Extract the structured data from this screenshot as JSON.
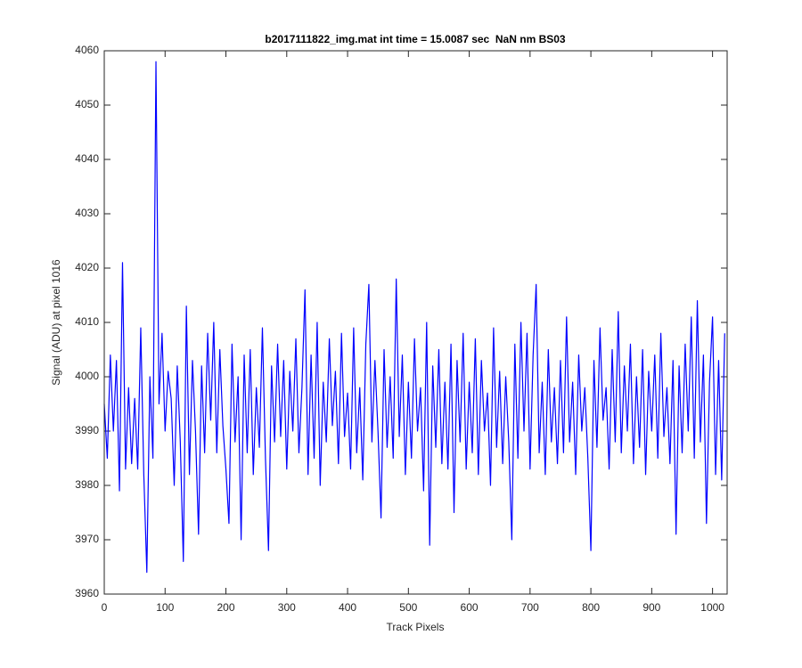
{
  "chart_data": {
    "type": "line",
    "title": "b2017111822_img.mat int time = 15.0087 sec  NaN nm BS03",
    "x_label": "Track Pixels",
    "y_label": "Signal (ADU) at pixel 1016",
    "color": "#0000ff",
    "xlim": [
      0,
      1024
    ],
    "ylim": [
      3960,
      4060
    ],
    "xticks": [
      0,
      100,
      200,
      300,
      400,
      500,
      600,
      700,
      800,
      900,
      1000
    ],
    "yticks": [
      3960,
      3970,
      3980,
      3990,
      4000,
      4010,
      4020,
      4030,
      4040,
      4050,
      4060
    ],
    "x": [
      0,
      5,
      10,
      15,
      20,
      25,
      30,
      35,
      40,
      45,
      50,
      55,
      60,
      65,
      70,
      75,
      80,
      85,
      90,
      95,
      100,
      105,
      110,
      115,
      120,
      125,
      130,
      135,
      140,
      145,
      150,
      155,
      160,
      165,
      170,
      175,
      180,
      185,
      190,
      195,
      200,
      205,
      210,
      215,
      220,
      225,
      230,
      235,
      240,
      245,
      250,
      255,
      260,
      265,
      270,
      275,
      280,
      285,
      290,
      295,
      300,
      305,
      310,
      315,
      320,
      325,
      330,
      335,
      340,
      345,
      350,
      355,
      360,
      365,
      370,
      375,
      380,
      385,
      390,
      395,
      400,
      405,
      410,
      415,
      420,
      425,
      430,
      435,
      440,
      445,
      450,
      455,
      460,
      465,
      470,
      475,
      480,
      485,
      490,
      495,
      500,
      505,
      510,
      515,
      520,
      525,
      530,
      535,
      540,
      545,
      550,
      555,
      560,
      565,
      570,
      575,
      580,
      585,
      590,
      595,
      600,
      605,
      610,
      615,
      620,
      625,
      630,
      635,
      640,
      645,
      650,
      655,
      660,
      665,
      670,
      675,
      680,
      685,
      690,
      695,
      700,
      705,
      710,
      715,
      720,
      725,
      730,
      735,
      740,
      745,
      750,
      755,
      760,
      765,
      770,
      775,
      780,
      785,
      790,
      795,
      800,
      805,
      810,
      815,
      820,
      825,
      830,
      835,
      840,
      845,
      850,
      855,
      860,
      865,
      870,
      875,
      880,
      885,
      890,
      895,
      900,
      905,
      910,
      915,
      920,
      925,
      930,
      935,
      940,
      945,
      950,
      955,
      960,
      965,
      970,
      975,
      980,
      985,
      990,
      995,
      1000,
      1005,
      1010,
      1015,
      1020
    ],
    "values": [
      3995,
      3985,
      4004,
      3990,
      4003,
      3979,
      4021,
      3983,
      3998,
      3984,
      3996,
      3983,
      4009,
      3982,
      3964,
      4000,
      3985,
      4058,
      3995,
      4008,
      3990,
      4001,
      3996,
      3980,
      4002,
      3988,
      3966,
      4013,
      3982,
      4003,
      3990,
      3971,
      4002,
      3986,
      4008,
      3992,
      4010,
      3986,
      4005,
      3991,
      3983,
      3973,
      4006,
      3988,
      4000,
      3970,
      4004,
      3986,
      4005,
      3982,
      3998,
      3987,
      4009,
      3985,
      3968,
      4002,
      3988,
      4006,
      3989,
      4003,
      3983,
      4001,
      3990,
      4007,
      3986,
      3998,
      4016,
      3982,
      4004,
      3985,
      4010,
      3980,
      3999,
      3988,
      4007,
      3991,
      4001,
      3984,
      4008,
      3989,
      3997,
      3983,
      4009,
      3986,
      3998,
      3981,
      4006,
      4017,
      3988,
      4003,
      3990,
      3974,
      4005,
      3987,
      4000,
      3985,
      4018,
      3989,
      4004,
      3982,
      3999,
      3985,
      4007,
      3990,
      3998,
      3979,
      4010,
      3969,
      4002,
      3987,
      4005,
      3984,
      3999,
      3983,
      4006,
      3975,
      4003,
      3988,
      4008,
      3983,
      3999,
      3986,
      4007,
      3982,
      4003,
      3990,
      3997,
      3980,
      4009,
      3987,
      4001,
      3984,
      4000,
      3988,
      3970,
      4006,
      3985,
      4010,
      3990,
      4008,
      3983,
      4004,
      4017,
      3986,
      3999,
      3982,
      4005,
      3988,
      3998,
      3984,
      4003,
      3986,
      4011,
      3988,
      3999,
      3982,
      4004,
      3990,
      3998,
      3985,
      3968,
      4003,
      3987,
      4009,
      3992,
      3998,
      3983,
      4005,
      3988,
      4012,
      3986,
      4002,
      3990,
      4006,
      3984,
      4000,
      3987,
      4005,
      3982,
      4001,
      3990,
      4004,
      3985,
      4008,
      3989,
      3998,
      3984,
      4003,
      3971,
      4002,
      3986,
      4006,
      3990,
      4011,
      3985,
      4014,
      3988,
      4004,
      3973,
      3999,
      4011,
      3982,
      4003,
      3981,
      4008
    ]
  }
}
